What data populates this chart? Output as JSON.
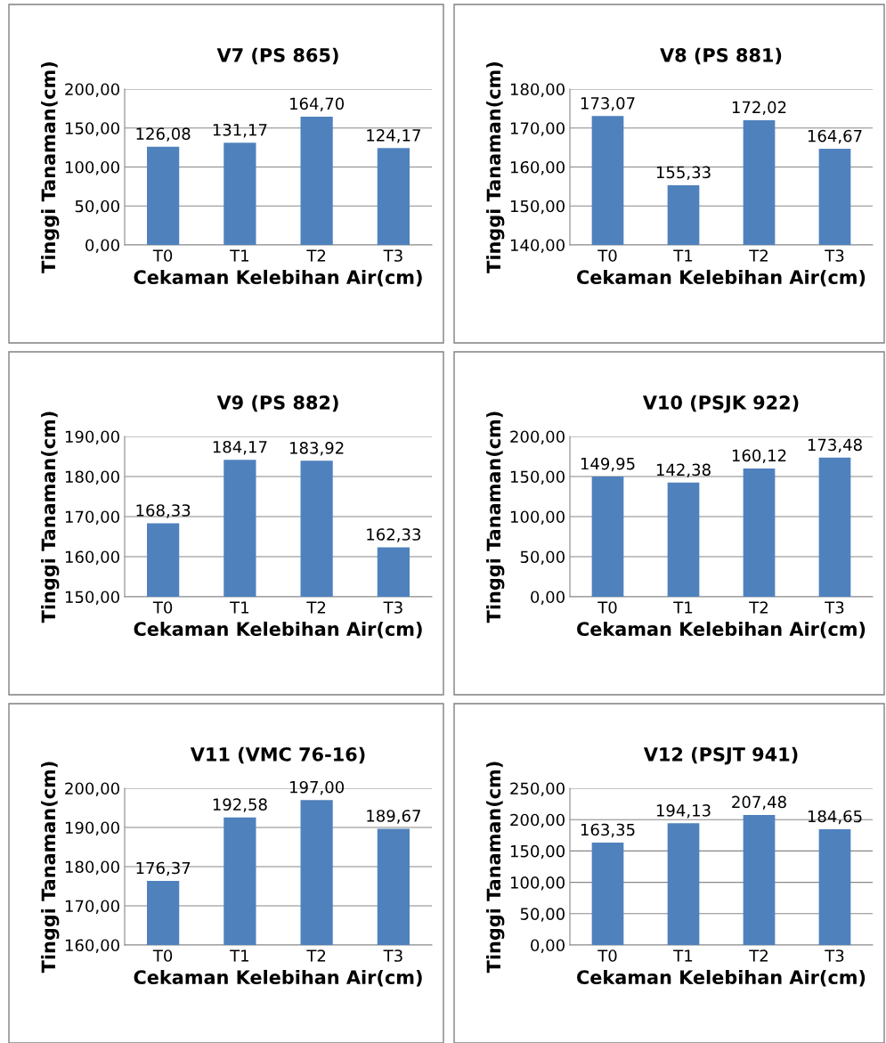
{
  "chart_data": [
    {
      "type": "bar",
      "title": "V7 (PS 865)",
      "xlabel": "Cekaman Kelebihan Air(cm)",
      "ylabel": "Tinggi Tanaman(cm)",
      "categories": [
        "T0",
        "T1",
        "T2",
        "T3"
      ],
      "values": [
        126.08,
        131.17,
        164.7,
        124.17
      ],
      "value_labels": [
        "126,08",
        "131,17",
        "164,70",
        "124,17"
      ],
      "color": "#4f81bd",
      "ylim": [
        0,
        200
      ],
      "yticks": [
        {
          "value": 0,
          "label": "0,00"
        },
        {
          "value": 50,
          "label": "50,00"
        },
        {
          "value": 100,
          "label": "100,00"
        },
        {
          "value": 150,
          "label": "150,00"
        },
        {
          "value": 200,
          "label": "200,00"
        }
      ],
      "grid": "y"
    },
    {
      "type": "bar",
      "title": "V8 (PS 881)",
      "xlabel": "Cekaman Kelebihan Air(cm)",
      "ylabel": "Tinggi Tanaman(cm)",
      "categories": [
        "T0",
        "T1",
        "T2",
        "T3"
      ],
      "values": [
        173.07,
        155.33,
        172.02,
        164.67
      ],
      "value_labels": [
        "173,07",
        "155,33",
        "172,02",
        "164,67"
      ],
      "color": "#4f81bd",
      "ylim": [
        140,
        180
      ],
      "yticks": [
        {
          "value": 140,
          "label": "140,00"
        },
        {
          "value": 150,
          "label": "150,00"
        },
        {
          "value": 160,
          "label": "160,00"
        },
        {
          "value": 170,
          "label": "170,00"
        },
        {
          "value": 180,
          "label": "180,00"
        }
      ],
      "grid": "y"
    },
    {
      "type": "bar",
      "title": "V9 (PS 882)",
      "xlabel": "Cekaman Kelebihan Air(cm)",
      "ylabel": "Tinggi Tanaman(cm)",
      "categories": [
        "T0",
        "T1",
        "T2",
        "T3"
      ],
      "values": [
        168.33,
        184.17,
        183.92,
        162.33
      ],
      "value_labels": [
        "168,33",
        "184,17",
        "183,92",
        "162,33"
      ],
      "color": "#4f81bd",
      "ylim": [
        150,
        190
      ],
      "yticks": [
        {
          "value": 150,
          "label": "150,00"
        },
        {
          "value": 160,
          "label": "160,00"
        },
        {
          "value": 170,
          "label": "170,00"
        },
        {
          "value": 180,
          "label": "180,00"
        },
        {
          "value": 190,
          "label": "190,00"
        }
      ],
      "grid": "y"
    },
    {
      "type": "bar",
      "title": "V10 (PSJK 922)",
      "xlabel": "Cekaman Kelebihan Air(cm)",
      "ylabel": "Tinggi Tanaman(cm)",
      "categories": [
        "T0",
        "T1",
        "T2",
        "T3"
      ],
      "values": [
        149.95,
        142.38,
        160.12,
        173.48
      ],
      "value_labels": [
        "149,95",
        "142,38",
        "160,12",
        "173,48"
      ],
      "color": "#4f81bd",
      "ylim": [
        0,
        200
      ],
      "yticks": [
        {
          "value": 0,
          "label": "0,00"
        },
        {
          "value": 50,
          "label": "50,00"
        },
        {
          "value": 100,
          "label": "100,00"
        },
        {
          "value": 150,
          "label": "150,00"
        },
        {
          "value": 200,
          "label": "200,00"
        }
      ],
      "grid": "y"
    },
    {
      "type": "bar",
      "title": "V11 (VMC 76-16)",
      "xlabel": "Cekaman Kelebihan Air(cm)",
      "ylabel": "Tinggi Tanaman(cm)",
      "categories": [
        "T0",
        "T1",
        "T2",
        "T3"
      ],
      "values": [
        176.37,
        192.58,
        197.0,
        189.67
      ],
      "value_labels": [
        "176,37",
        "192,58",
        "197,00",
        "189,67"
      ],
      "color": "#4f81bd",
      "ylim": [
        160,
        200
      ],
      "yticks": [
        {
          "value": 160,
          "label": "160,00"
        },
        {
          "value": 170,
          "label": "170,00"
        },
        {
          "value": 180,
          "label": "180,00"
        },
        {
          "value": 190,
          "label": "190,00"
        },
        {
          "value": 200,
          "label": "200,00"
        }
      ],
      "grid": "y"
    },
    {
      "type": "bar",
      "title": "V12 (PSJT 941)",
      "xlabel": "Cekaman Kelebihan Air(cm)",
      "ylabel": "Tinggi Tanaman(cm)",
      "categories": [
        "T0",
        "T1",
        "T2",
        "T3"
      ],
      "values": [
        163.35,
        194.13,
        207.48,
        184.65
      ],
      "value_labels": [
        "163,35",
        "194,13",
        "207,48",
        "184,65"
      ],
      "color": "#4f81bd",
      "ylim": [
        0,
        250
      ],
      "yticks": [
        {
          "value": 0,
          "label": "0,00"
        },
        {
          "value": 50,
          "label": "50,00"
        },
        {
          "value": 100,
          "label": "100,00"
        },
        {
          "value": 150,
          "label": "150,00"
        },
        {
          "value": 200,
          "label": "200,00"
        },
        {
          "value": 250,
          "label": "250,00"
        }
      ],
      "grid": "y"
    }
  ]
}
